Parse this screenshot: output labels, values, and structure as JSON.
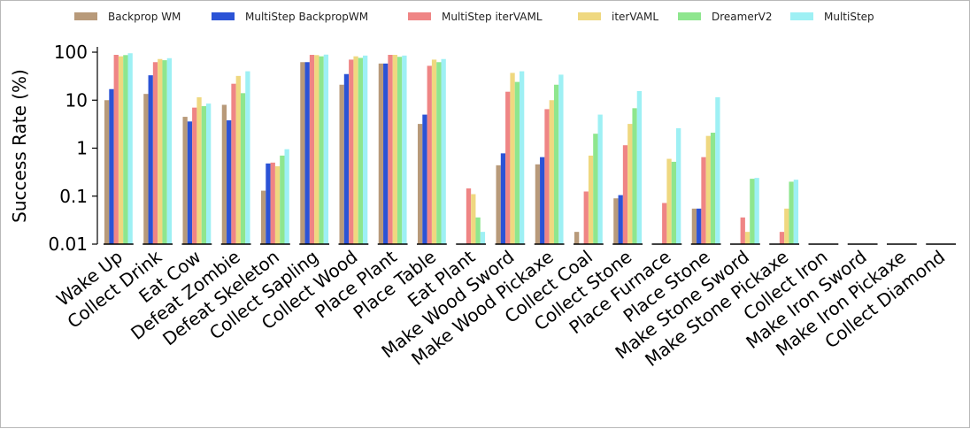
{
  "chart_data": {
    "type": "bar",
    "title": "",
    "xlabel": "",
    "ylabel": "Success Rate (%)",
    "yscale": "log",
    "ylim": [
      0.01,
      100
    ],
    "yticks": [
      {
        "value": 100,
        "label": "100"
      },
      {
        "value": 10,
        "label": "10"
      },
      {
        "value": 1,
        "label": "1"
      },
      {
        "value": 0.1,
        "label": "0.1"
      },
      {
        "value": 0.01,
        "label": "0.01"
      }
    ],
    "grid": false,
    "legend_position": "top",
    "categories": [
      "Wake Up",
      "Collect Drink",
      "Eat Cow",
      "Defeat Zombie",
      "Defeat Skeleton",
      "Collect Sapling",
      "Collect Wood",
      "Place Plant",
      "Place Table",
      "Eat Plant",
      "Make Wood Sword",
      "Make Wood Pickaxe",
      "Collect Coal",
      "Collect Stone",
      "Place Furnace",
      "Place Stone",
      "Make Stone Sword",
      "Make Stone Pickaxe",
      "Collect Iron",
      "Make Iron Sword",
      "Make Iron Pickaxe",
      "Collect Diamond"
    ],
    "series": [
      {
        "name": "Backprop WM",
        "color": "#b89a7a",
        "values": [
          10,
          13.5,
          4.5,
          8,
          0.13,
          62,
          21,
          58,
          3.2,
          0,
          0.44,
          0.46,
          0.018,
          0.09,
          0,
          0.055,
          0,
          0,
          0,
          0,
          0,
          0
        ]
      },
      {
        "name": "MultiStep BackpropWM",
        "color": "#2b53d6",
        "values": [
          17,
          33,
          3.6,
          3.8,
          0.48,
          62,
          35,
          58,
          5,
          0,
          0.78,
          0.65,
          0,
          0.105,
          0,
          0.055,
          0,
          0,
          0,
          0,
          0,
          0
        ]
      },
      {
        "name": "MultiStep iterVAML",
        "color": "#ef8585",
        "values": [
          88,
          62,
          7,
          22,
          0.5,
          88,
          70,
          88,
          52,
          0.145,
          15,
          6.5,
          0.125,
          1.15,
          0.072,
          0.65,
          0.036,
          0.018,
          0,
          0,
          0,
          0
        ]
      },
      {
        "name": "iterVAML",
        "color": "#efd880",
        "values": [
          82,
          72,
          11.5,
          32,
          0.42,
          87,
          82,
          88,
          70,
          0.11,
          37,
          10,
          0.7,
          3.2,
          0.6,
          1.8,
          0.018,
          0.055,
          0,
          0,
          0,
          0
        ]
      },
      {
        "name": "DreamerV2",
        "color": "#8ee68e",
        "values": [
          87,
          68,
          7.5,
          14,
          0.7,
          82,
          76,
          80,
          62,
          0.036,
          24,
          21,
          2,
          6.8,
          0.52,
          2.1,
          0.23,
          0.2,
          0,
          0,
          0,
          0
        ]
      },
      {
        "name": "MultiStep",
        "color": "#9ef0f4",
        "values": [
          95,
          75,
          8.5,
          40,
          0.95,
          89,
          85,
          85,
          72,
          0.018,
          40,
          34,
          5,
          15.5,
          2.6,
          11.5,
          0.24,
          0.22,
          0,
          0,
          0,
          0
        ]
      }
    ]
  }
}
